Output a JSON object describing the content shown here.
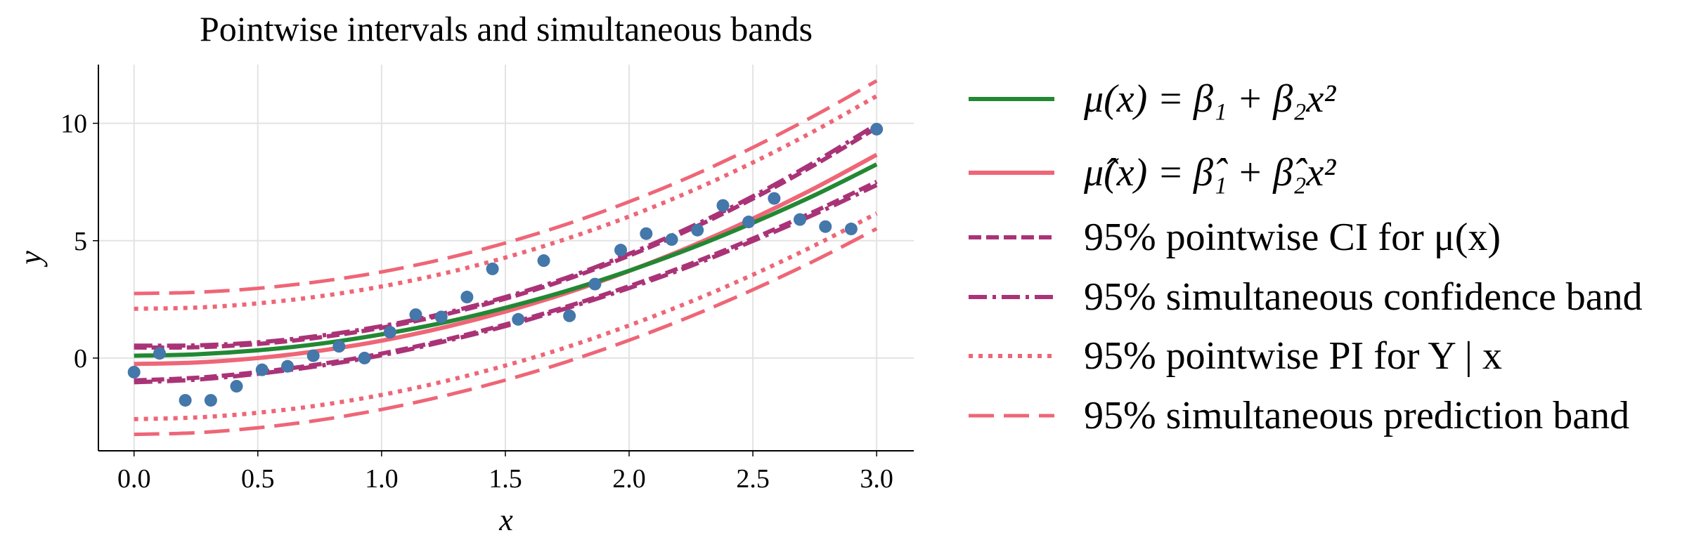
{
  "chart_data": {
    "type": "line",
    "title": "Pointwise intervals and simultaneous bands",
    "xlabel": "x",
    "ylabel": "y",
    "xlim": [
      -0.144,
      3.15
    ],
    "ylim": [
      -3.95,
      12.5
    ],
    "grid": true,
    "legend_placement": "outside-right",
    "xticks": [
      0.0,
      0.5,
      1.0,
      1.5,
      2.0,
      2.5,
      3.0
    ],
    "xtick_labels": [
      "0.0",
      "0.5",
      "1.0",
      "1.5",
      "2.0",
      "2.5",
      "3.0"
    ],
    "yticks": [
      0,
      5,
      10
    ],
    "ytick_labels": [
      "0",
      "5",
      "10"
    ],
    "scatter": {
      "name": "observations",
      "color": "#4477AA",
      "x": [
        0,
        0.103,
        0.207,
        0.31,
        0.414,
        0.517,
        0.62,
        0.724,
        0.828,
        0.931,
        1.034,
        1.138,
        1.241,
        1.345,
        1.448,
        1.552,
        1.655,
        1.759,
        1.862,
        1.966,
        2.069,
        2.172,
        2.276,
        2.379,
        2.483,
        2.586,
        2.69,
        2.793,
        2.897,
        3.0
      ],
      "y": [
        -0.6,
        0.2,
        -1.8,
        -1.8,
        -1.2,
        -0.5,
        -0.35,
        0.1,
        0.5,
        0.0,
        1.1,
        1.85,
        1.75,
        2.6,
        3.8,
        1.65,
        4.15,
        1.8,
        3.15,
        4.6,
        5.3,
        5.05,
        5.45,
        6.5,
        5.8,
        6.8,
        5.9,
        5.6,
        5.5,
        9.75
      ]
    },
    "x": [
      0,
      0.25,
      0.5,
      0.75,
      1.0,
      1.25,
      1.5,
      1.75,
      2.0,
      2.25,
      2.5,
      2.75,
      3.0
    ],
    "series": [
      {
        "name": "true_mean",
        "label": "μ(x) = β₁ + β₂x²",
        "color": "#228833",
        "style": "solid",
        "values": [
          0.1,
          0.16,
          0.33,
          0.61,
          1.01,
          1.51,
          2.14,
          2.87,
          3.72,
          4.68,
          5.76,
          6.94,
          8.25
        ]
      },
      {
        "name": "fitted_mean",
        "label": "μ̂(x) = β̂₁ + β̂₂x²",
        "color": "#EE6677",
        "style": "solid",
        "values": [
          -0.25,
          -0.19,
          0.0,
          0.31,
          0.74,
          1.3,
          1.98,
          2.78,
          3.71,
          4.76,
          5.94,
          7.24,
          8.66
        ]
      },
      {
        "name": "pointwise_ci",
        "label": "95% pointwise CI for μ(x)",
        "color": "#AA3377",
        "style": "dashed",
        "upper": [
          0.45,
          0.46,
          0.6,
          0.88,
          1.29,
          1.84,
          2.53,
          3.36,
          4.36,
          5.5,
          6.79,
          8.23,
          9.81
        ],
        "lower": [
          -0.95,
          -0.84,
          -0.6,
          -0.26,
          0.19,
          0.76,
          1.43,
          2.2,
          3.06,
          4.02,
          5.09,
          6.25,
          7.51
        ]
      },
      {
        "name": "simultaneous_cb",
        "label": "95% simultaneous confidence band",
        "color": "#AA3377",
        "style": "dashdot",
        "upper": [
          0.53,
          0.54,
          0.67,
          0.95,
          1.36,
          1.9,
          2.6,
          3.43,
          4.44,
          5.59,
          6.89,
          8.35,
          9.95
        ],
        "lower": [
          -1.03,
          -0.92,
          -0.67,
          -0.33,
          0.12,
          0.7,
          1.36,
          2.13,
          2.98,
          3.93,
          4.99,
          6.13,
          7.37
        ]
      },
      {
        "name": "pointwise_pi",
        "label": "95% pointwise PI for Y | x",
        "color": "#EE6677",
        "style": "dotted",
        "upper": [
          2.1,
          2.15,
          2.33,
          2.63,
          3.05,
          3.6,
          4.28,
          5.09,
          6.03,
          7.11,
          8.33,
          9.68,
          11.16
        ],
        "lower": [
          -2.6,
          -2.53,
          -2.33,
          -2.01,
          -1.57,
          -1.0,
          -0.32,
          0.47,
          1.39,
          2.41,
          3.55,
          4.8,
          6.16
        ]
      },
      {
        "name": "simultaneous_pb",
        "label": "95% simultaneous prediction band",
        "color": "#EE6677",
        "style": "longdash",
        "upper": [
          2.75,
          2.8,
          2.97,
          3.26,
          3.67,
          4.22,
          4.9,
          5.71,
          6.66,
          7.74,
          8.97,
          10.33,
          11.81
        ],
        "lower": [
          -3.25,
          -3.18,
          -2.97,
          -2.64,
          -2.19,
          -1.62,
          -0.94,
          -0.15,
          0.76,
          1.78,
          2.91,
          4.15,
          5.51
        ]
      }
    ]
  }
}
